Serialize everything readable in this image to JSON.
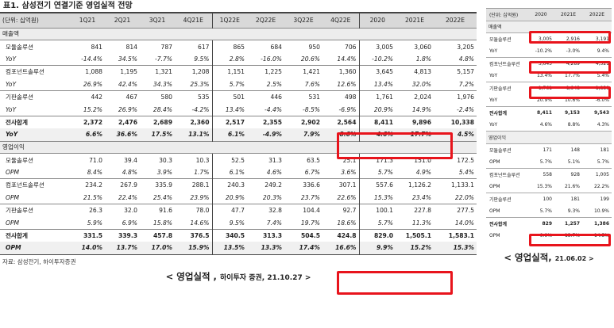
{
  "left": {
    "title": "표1.  삼성전기 연결기준 영업실적 전망",
    "columns": [
      "(단위: 십억원)",
      "1Q21",
      "2Q21",
      "3Q21",
      "4Q21E",
      "1Q22E",
      "2Q22E",
      "3Q22E",
      "4Q22E",
      "2020",
      "2021E",
      "2022E"
    ],
    "rows": [
      {
        "type": "sec",
        "label": "매출액"
      },
      {
        "type": "val",
        "label": "모듈솔루션",
        "v": [
          "841",
          "814",
          "787",
          "617",
          "865",
          "684",
          "950",
          "706",
          "3,005",
          "3,060",
          "3,205"
        ]
      },
      {
        "type": "sub",
        "label": "YoY",
        "v": [
          "-14.4%",
          "34.5%",
          "-7.7%",
          "9.5%",
          "2.8%",
          "-16.0%",
          "20.6%",
          "14.4%",
          "-10.2%",
          "1.8%",
          "4.8%"
        ]
      },
      {
        "type": "val",
        "label": "컴포넌트솔루션",
        "v": [
          "1,088",
          "1,195",
          "1,321",
          "1,208",
          "1,151",
          "1,225",
          "1,421",
          "1,360",
          "3,645",
          "4,813",
          "5,157"
        ]
      },
      {
        "type": "sub",
        "label": "YoY",
        "v": [
          "26.9%",
          "42.4%",
          "34.3%",
          "25.3%",
          "5.7%",
          "2.5%",
          "7.6%",
          "12.6%",
          "13.4%",
          "32.0%",
          "7.2%"
        ]
      },
      {
        "type": "val",
        "label": "기판솔루션",
        "v": [
          "442",
          "467",
          "580",
          "535",
          "501",
          "446",
          "531",
          "498",
          "1,761",
          "2,024",
          "1,976"
        ]
      },
      {
        "type": "sub",
        "label": "YoY",
        "v": [
          "15.2%",
          "26.9%",
          "28.4%",
          "-4.2%",
          "13.4%",
          "-4.4%",
          "-8.5%",
          "-6.9%",
          "20.9%",
          "14.9%",
          "-2.4%"
        ]
      },
      {
        "type": "bold",
        "label": "전사합계",
        "v": [
          "2,372",
          "2,476",
          "2,689",
          "2,360",
          "2,517",
          "2,355",
          "2,902",
          "2,564",
          "8,411",
          "9,896",
          "10,338"
        ]
      },
      {
        "type": "boldsub",
        "label": "YoY",
        "v": [
          "6.6%",
          "36.6%",
          "17.5%",
          "13.1%",
          "6.1%",
          "-4.9%",
          "7.9%",
          "8.6%",
          "4.6%",
          "17.7%",
          "4.5%"
        ]
      },
      {
        "type": "sec",
        "label": "영업이익"
      },
      {
        "type": "val",
        "label": "모듈솔루션",
        "v": [
          "71.0",
          "39.4",
          "30.3",
          "10.3",
          "52.5",
          "31.3",
          "63.5",
          "25.1",
          "171.3",
          "151.0",
          "172.5"
        ]
      },
      {
        "type": "sub",
        "label": "OPM",
        "v": [
          "8.4%",
          "4.8%",
          "3.9%",
          "1.7%",
          "6.1%",
          "4.6%",
          "6.7%",
          "3.6%",
          "5.7%",
          "4.9%",
          "5.4%"
        ]
      },
      {
        "type": "val",
        "label": "컴포넌트솔루션",
        "v": [
          "234.2",
          "267.9",
          "335.9",
          "288.1",
          "240.3",
          "249.2",
          "336.6",
          "307.1",
          "557.6",
          "1,126.2",
          "1,133.1"
        ]
      },
      {
        "type": "sub",
        "label": "OPM",
        "v": [
          "21.5%",
          "22.4%",
          "25.4%",
          "23.9%",
          "20.9%",
          "20.3%",
          "23.7%",
          "22.6%",
          "15.3%",
          "23.4%",
          "22.0%"
        ]
      },
      {
        "type": "val",
        "label": "기판솔루션",
        "v": [
          "26.3",
          "32.0",
          "91.6",
          "78.0",
          "47.7",
          "32.8",
          "104.4",
          "92.7",
          "100.1",
          "227.8",
          "277.5"
        ]
      },
      {
        "type": "sub",
        "label": "OPM",
        "v": [
          "5.9%",
          "6.9%",
          "15.8%",
          "14.6%",
          "9.5%",
          "7.4%",
          "19.7%",
          "18.6%",
          "5.7%",
          "11.3%",
          "14.0%"
        ]
      },
      {
        "type": "bold",
        "label": "전사합계",
        "v": [
          "331.5",
          "339.3",
          "457.8",
          "376.5",
          "340.5",
          "313.3",
          "504.5",
          "424.8",
          "829.0",
          "1,505.1",
          "1,583.1"
        ]
      },
      {
        "type": "boldsub",
        "label": "OPM",
        "v": [
          "14.0%",
          "13.7%",
          "17.0%",
          "15.9%",
          "13.5%",
          "13.3%",
          "17.4%",
          "16.6%",
          "9.9%",
          "15.2%",
          "15.3%"
        ]
      }
    ],
    "source": "자료: 삼성전기, 하이투자증권",
    "caption_main": "< 영업실적 ,",
    "caption_small": "하이투자 증권,  21.10.27 >"
  },
  "right": {
    "columns": [
      "(단위: 십억원)",
      "2020",
      "2021E",
      "2022E"
    ],
    "rows": [
      {
        "type": "sec",
        "label": "매출액"
      },
      {
        "type": "val",
        "label": "모듈솔루션",
        "v": [
          "3,005",
          "2,916",
          "3,191"
        ]
      },
      {
        "type": "val",
        "label": "YoY",
        "v": [
          "-10.2%",
          "-3.0%",
          "9.4%"
        ]
      },
      {
        "type": "val",
        "label": "컴포넌트솔루션",
        "v": [
          "3,645",
          "4,289",
          "4,521"
        ]
      },
      {
        "type": "val",
        "label": "YoY",
        "v": [
          "13.4%",
          "17.7%",
          "5.4%"
        ]
      },
      {
        "type": "val",
        "label": "기판솔루션",
        "v": [
          "1,761",
          "1,948",
          "1,830"
        ]
      },
      {
        "type": "val",
        "label": "YoY",
        "v": [
          "20.9%",
          "10.6%",
          "-6.0%"
        ]
      },
      {
        "type": "bold",
        "label": "전사합계",
        "v": [
          "8,411",
          "9,153",
          "9,543"
        ]
      },
      {
        "type": "val",
        "label": "YoY",
        "v": [
          "4.6%",
          "8.8%",
          "4.3%"
        ]
      },
      {
        "type": "sec",
        "label": "영업이익"
      },
      {
        "type": "val",
        "label": "모듈솔루션",
        "v": [
          "171",
          "148",
          "181"
        ]
      },
      {
        "type": "val",
        "label": "OPM",
        "v": [
          "5.7%",
          "5.1%",
          "5.7%"
        ]
      },
      {
        "type": "val",
        "label": "컴포넌트솔루션",
        "v": [
          "558",
          "928",
          "1,005"
        ]
      },
      {
        "type": "val",
        "label": "OPM",
        "v": [
          "15.3%",
          "21.6%",
          "22.2%"
        ]
      },
      {
        "type": "val",
        "label": "기판솔루션",
        "v": [
          "100",
          "181",
          "199"
        ]
      },
      {
        "type": "val",
        "label": "OPM",
        "v": [
          "5.7%",
          "9.3%",
          "10.9%"
        ]
      },
      {
        "type": "bold",
        "label": "전사합계",
        "v": [
          "829",
          "1,257",
          "1,386"
        ]
      },
      {
        "type": "val",
        "label": "OPM",
        "v": [
          "9.9%",
          "13.7%",
          "14.5%"
        ]
      }
    ],
    "caption_main": "< 영업실적,",
    "caption_small": "21.06.02 >"
  },
  "highlight_color": "#e8141c"
}
